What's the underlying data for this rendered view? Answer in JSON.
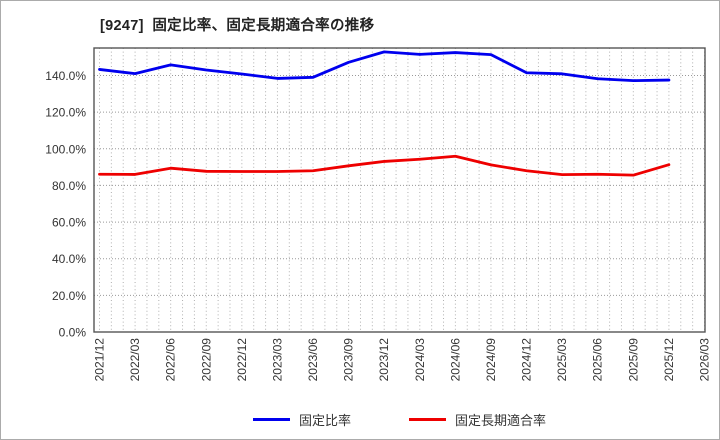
{
  "title": "[9247]  固定比率、固定長期適合率の推移",
  "colors": {
    "series1": "#0000ee",
    "series2": "#ee0000",
    "grid": "#b0b0b0",
    "axis_border": "#555555",
    "tick_text": "#333333",
    "title_text": "#222222"
  },
  "chart_data": {
    "type": "line",
    "title": "[9247]  固定比率、固定長期適合率の推移",
    "categories": [
      "2021/12",
      "2022/03",
      "2022/06",
      "2022/09",
      "2022/12",
      "2023/03",
      "2023/06",
      "2023/09",
      "2023/12",
      "2024/03",
      "2024/06",
      "2024/09",
      "2024/12",
      "2025/03",
      "2025/06",
      "2025/09",
      "2025/12",
      "2026/03"
    ],
    "series": [
      {
        "name": "固定比率",
        "color": "#0000ee",
        "values": [
          143.3,
          141.0,
          145.8,
          143.0,
          140.8,
          138.4,
          139.0,
          147.2,
          152.9,
          151.5,
          152.5,
          151.4,
          141.5,
          140.9,
          138.2,
          137.2,
          137.5
        ]
      },
      {
        "name": "固定長期適合率",
        "color": "#ee0000",
        "values": [
          86.1,
          86.0,
          89.4,
          87.7,
          87.6,
          87.6,
          88.0,
          90.7,
          93.1,
          94.3,
          95.9,
          91.2,
          88.0,
          85.9,
          86.1,
          85.6,
          91.3
        ]
      }
    ],
    "xlabel": "",
    "ylabel": "",
    "ylim": [
      0,
      155
    ],
    "yticks": [
      0,
      20,
      40,
      60,
      80,
      100,
      120,
      140
    ],
    "ytick_suffix": ".0%-style (one decimal, percent)",
    "grid": true,
    "minor_vertical_grid": "monthly",
    "legend_position": "bottom"
  },
  "legend": {
    "items": [
      {
        "label": "固定比率",
        "color": "#0000ee"
      },
      {
        "label": "固定長期適合率",
        "color": "#ee0000"
      }
    ]
  }
}
